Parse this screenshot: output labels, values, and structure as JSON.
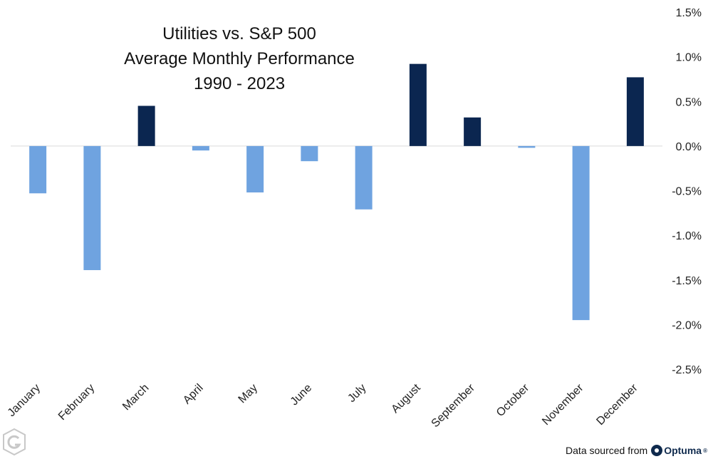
{
  "chart_data": {
    "type": "bar",
    "title_lines": [
      "Utilities vs. S&P 500",
      "Average Monthly Performance",
      "1990 - 2023"
    ],
    "categories": [
      "January",
      "February",
      "March",
      "April",
      "May",
      "June",
      "July",
      "August",
      "September",
      "October",
      "November",
      "December"
    ],
    "values": [
      -0.53,
      -1.39,
      0.45,
      -0.05,
      -0.52,
      -0.17,
      -0.71,
      0.92,
      0.32,
      -0.02,
      -1.95,
      0.77
    ],
    "ylim": [
      -2.5,
      1.5
    ],
    "yticks": [
      1.5,
      1.0,
      0.5,
      0.0,
      -0.5,
      -1.0,
      -1.5,
      -2.0,
      -2.5
    ],
    "ytick_labels": [
      "1.5%",
      "1.0%",
      "0.5%",
      "0.0%",
      "-0.5%",
      "-1.0%",
      "-1.5%",
      "-2.0%",
      "-2.5%"
    ],
    "y_axis_side": "right",
    "grid": false,
    "colors": {
      "positive": "#0b2650",
      "negative": "#6fa3e0",
      "zero_line": "#d9d9d9"
    }
  },
  "footer": {
    "source_label": "Data sourced from",
    "brand_name": "Optuma",
    "brand_mark": "®"
  },
  "watermark_icon": "g-shield-logo-icon"
}
